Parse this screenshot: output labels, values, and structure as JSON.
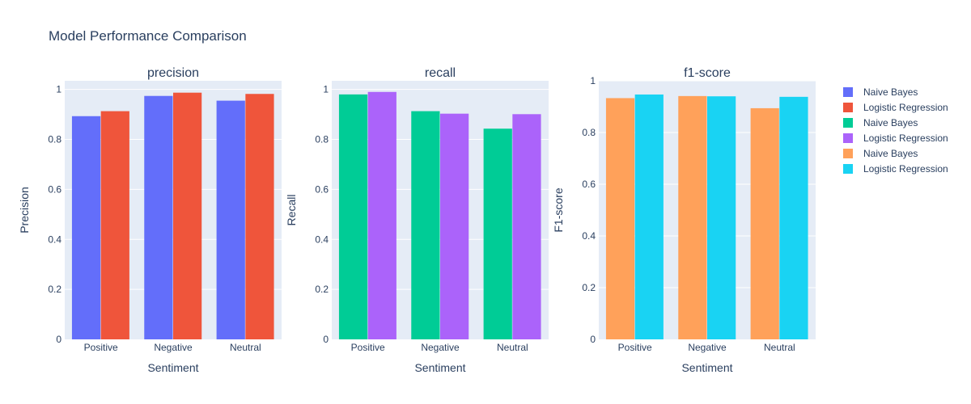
{
  "title": "Model Performance Comparison",
  "chart_data": [
    {
      "type": "bar",
      "subtitle": "precision",
      "xlabel": "Sentiment",
      "ylabel": "Precision",
      "categories": [
        "Positive",
        "Negative",
        "Neutral"
      ],
      "ylim": [
        0,
        1.0345
      ],
      "yticks": [
        0,
        0.2,
        0.4,
        0.6,
        0.8,
        1
      ],
      "ytick_labels": [
        "0",
        "0.2",
        "0.4",
        "0.6",
        "0.8",
        "1"
      ],
      "grid": true,
      "series": [
        {
          "name": "Naive Bayes",
          "color": "#636efa",
          "values": [
            0.893,
            0.974,
            0.955
          ]
        },
        {
          "name": "Logistic Regression",
          "color": "#ef553b",
          "values": [
            0.913,
            0.987,
            0.982
          ]
        }
      ]
    },
    {
      "type": "bar",
      "subtitle": "recall",
      "xlabel": "Sentiment",
      "ylabel": "Recall",
      "categories": [
        "Positive",
        "Negative",
        "Neutral"
      ],
      "ylim": [
        0,
        1.0345
      ],
      "yticks": [
        0,
        0.2,
        0.4,
        0.6,
        0.8,
        1
      ],
      "ytick_labels": [
        "0",
        "0.2",
        "0.4",
        "0.6",
        "0.8",
        "1"
      ],
      "grid": true,
      "series": [
        {
          "name": "Naive Bayes",
          "color": "#00cc96",
          "values": [
            0.98,
            0.913,
            0.843
          ]
        },
        {
          "name": "Logistic Regression",
          "color": "#ab63fa",
          "values": [
            0.99,
            0.903,
            0.901
          ]
        }
      ]
    },
    {
      "type": "bar",
      "subtitle": "f1-score",
      "xlabel": "Sentiment",
      "ylabel": "F1-score",
      "categories": [
        "Positive",
        "Negative",
        "Neutral"
      ],
      "ylim": [
        0,
        1.0
      ],
      "yticks": [
        0,
        0.2,
        0.4,
        0.6,
        0.8,
        1
      ],
      "ytick_labels": [
        "0",
        "0.2",
        "0.4",
        "0.6",
        "0.8",
        "1"
      ],
      "grid": true,
      "series": [
        {
          "name": "Naive Bayes",
          "color": "#ffa15a",
          "values": [
            0.933,
            0.941,
            0.894
          ]
        },
        {
          "name": "Logistic Regression",
          "color": "#19d3f3",
          "values": [
            0.947,
            0.94,
            0.938
          ]
        }
      ]
    }
  ],
  "legend": {
    "placement": "top-right",
    "items": [
      {
        "label": "Naive Bayes",
        "color": "#636efa"
      },
      {
        "label": "Logistic Regression",
        "color": "#ef553b"
      },
      {
        "label": "Naive Bayes",
        "color": "#00cc96"
      },
      {
        "label": "Logistic Regression",
        "color": "#ab63fa"
      },
      {
        "label": "Naive Bayes",
        "color": "#ffa15a"
      },
      {
        "label": "Logistic Regression",
        "color": "#19d3f3"
      }
    ]
  }
}
